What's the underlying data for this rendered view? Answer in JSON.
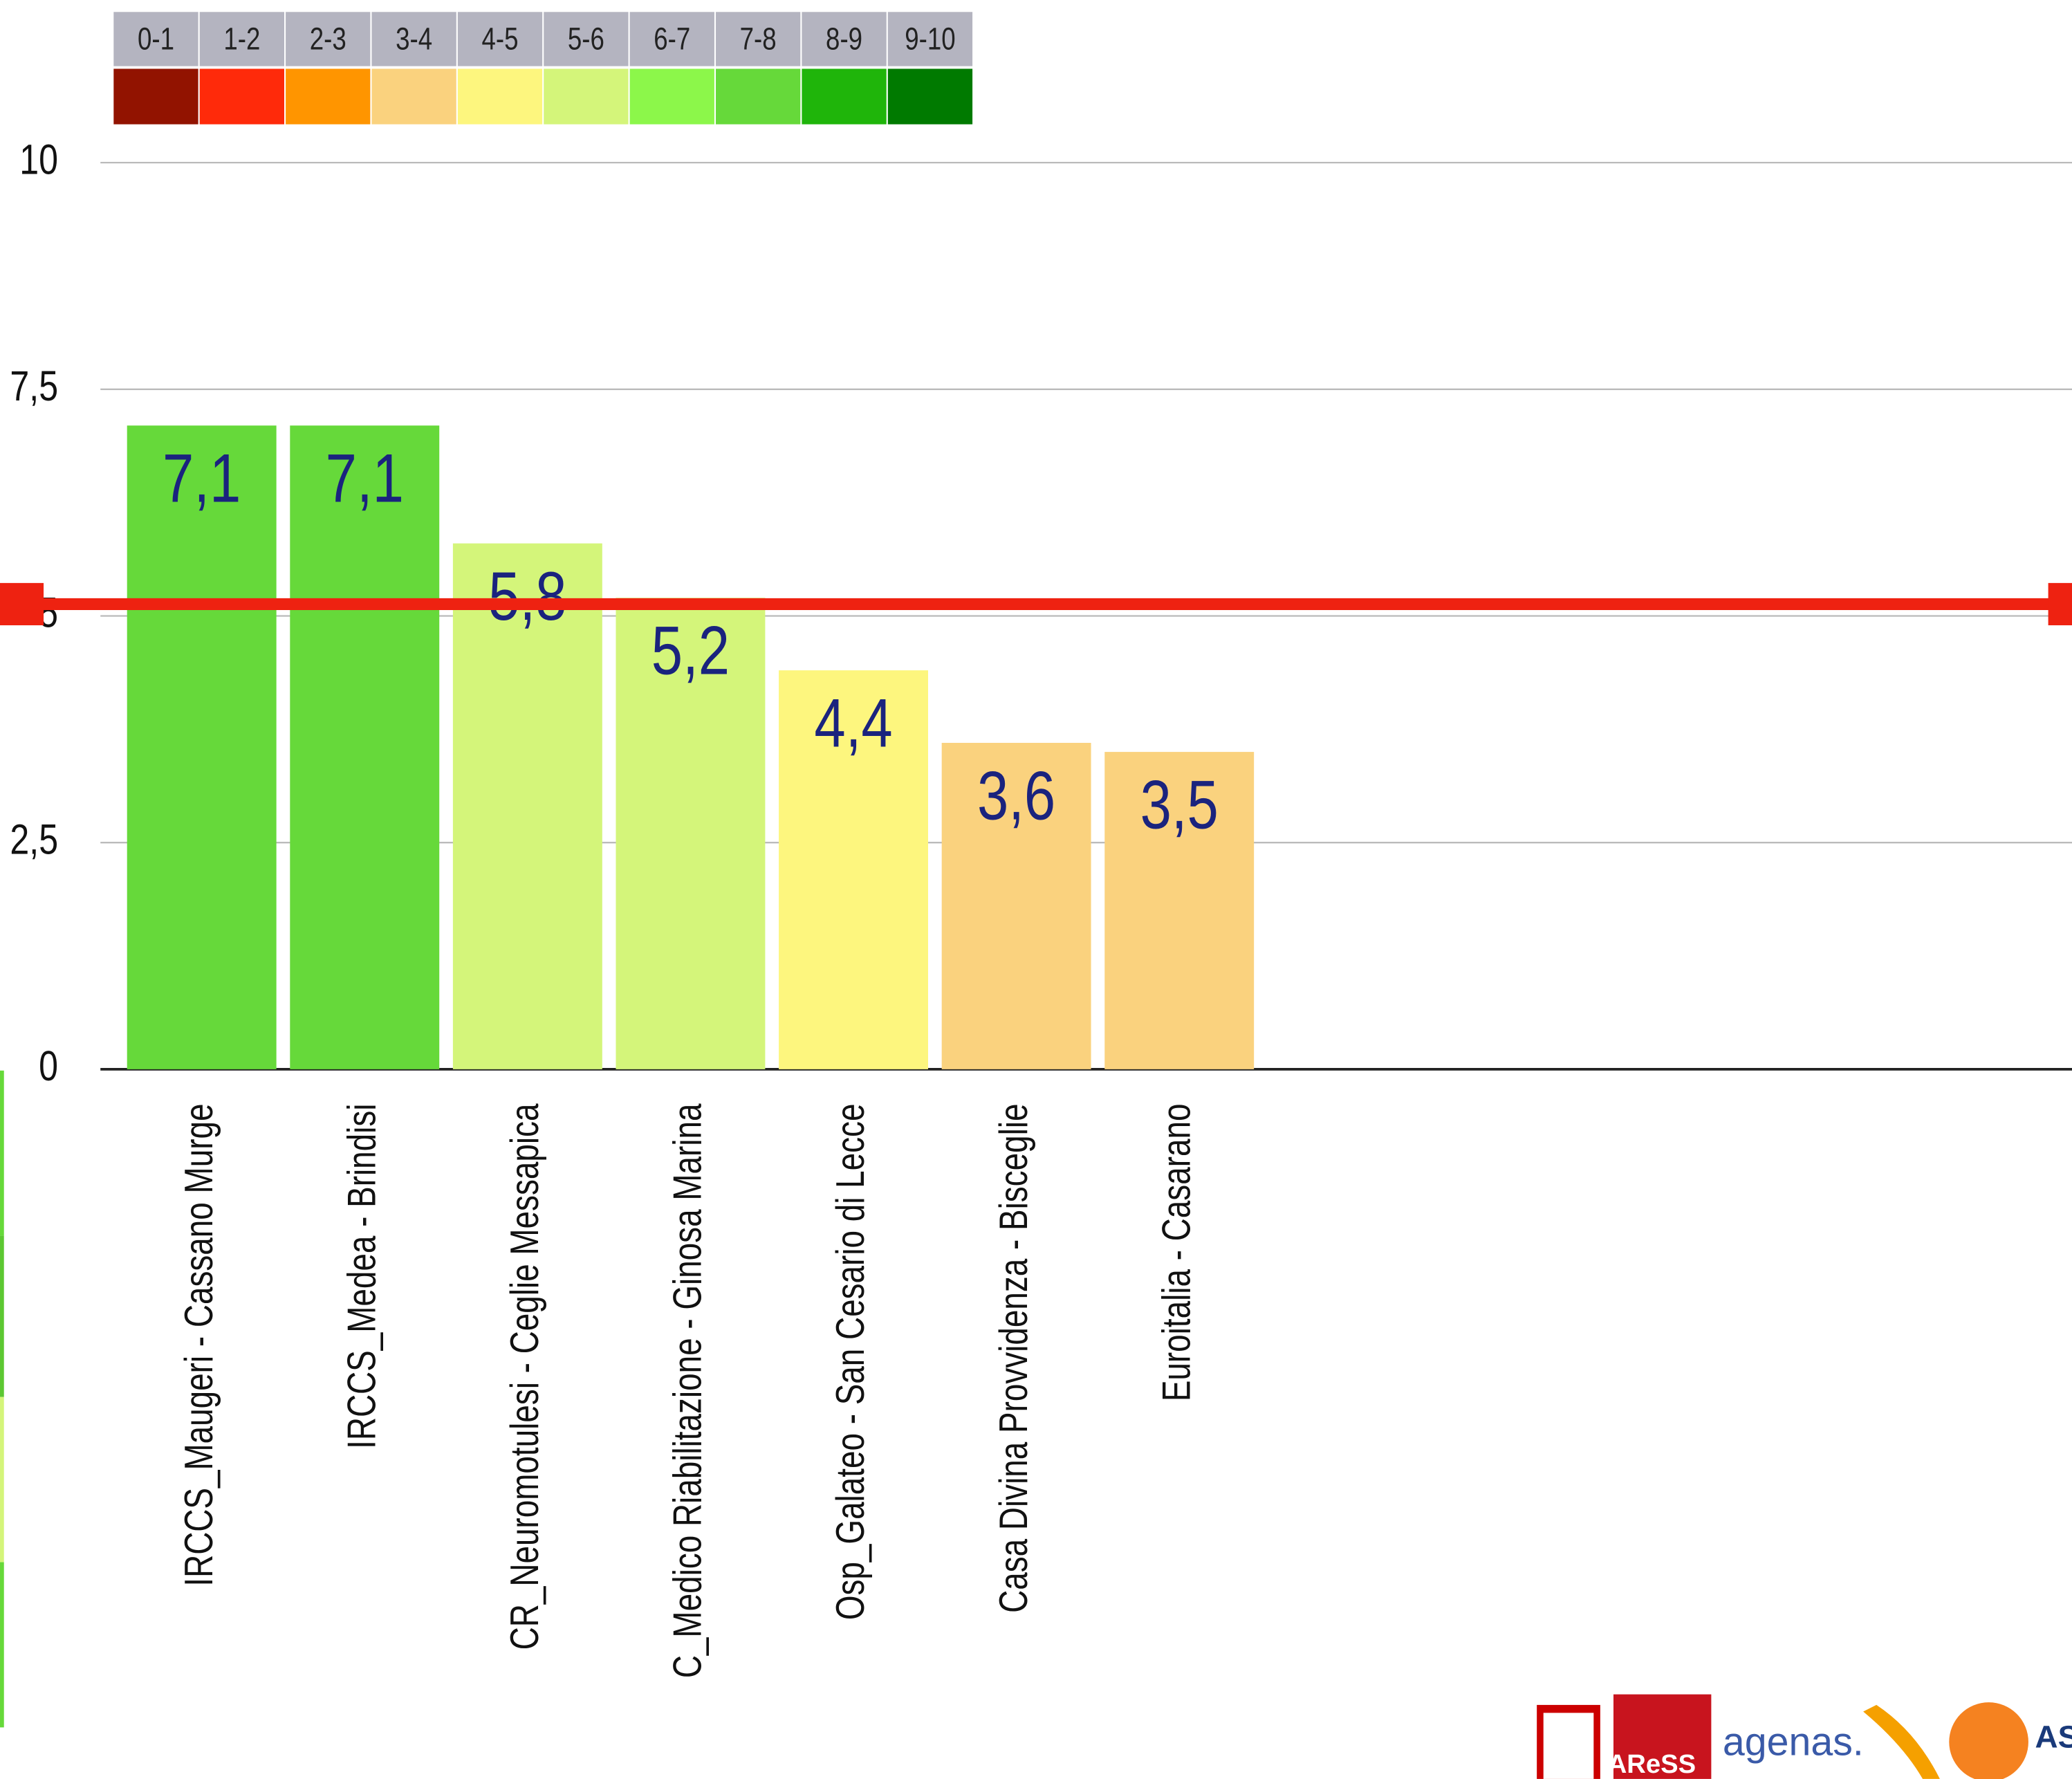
{
  "chart_data": {
    "type": "bar",
    "categories": [
      "IRCCS_Maugeri - Cassano Murge",
      "IRCCS_Medea - Brindisi",
      "CR_Neuromotulesi - Ceglie Messapica",
      "C_Medico Riabilitazione - Ginosa Marina",
      "Osp_Galateo - San Cesario di Lecce",
      "Casa Divina Provvidenza - Bisceglie",
      "Euroitalia - Casarano"
    ],
    "values": [
      7.1,
      7.1,
      5.8,
      5.2,
      4.4,
      3.6,
      3.5
    ],
    "value_labels": [
      "7,1",
      "7,1",
      "5,8",
      "5,2",
      "4,4",
      "3,6",
      "3,5"
    ],
    "ylim": [
      0,
      10
    ],
    "yticks": [
      0,
      {
        "value": 2.5,
        "label": "2,5"
      },
      5,
      {
        "value": 7.5,
        "label": "7,5"
      },
      10
    ],
    "grid": true,
    "reference_line": {
      "value": 5.13,
      "color": "#ee2211"
    },
    "color_scale": [
      {
        "label": "0-1",
        "color": "#921300"
      },
      {
        "label": "1-2",
        "color": "#ff2a0a"
      },
      {
        "label": "2-3",
        "color": "#ff9500"
      },
      {
        "label": "3-4",
        "color": "#fad27e"
      },
      {
        "label": "4-5",
        "color": "#fdf67e"
      },
      {
        "label": "5-6",
        "color": "#d4f57a"
      },
      {
        "label": "6-7",
        "color": "#8cf74a"
      },
      {
        "label": "7-8",
        "color": "#66d93a"
      },
      {
        "label": "8-9",
        "color": "#1fb50a"
      },
      {
        "label": "9-10",
        "color": "#007a00"
      }
    ],
    "logos": [
      "AReSS",
      "agenas."
    ]
  }
}
